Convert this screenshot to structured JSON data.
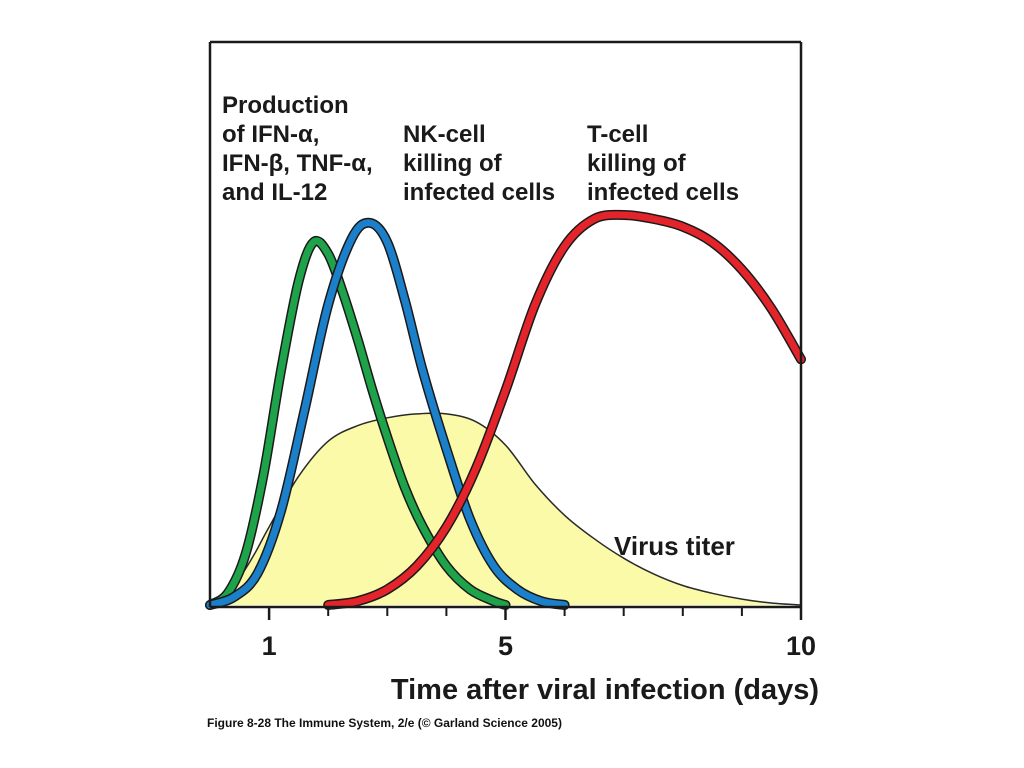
{
  "caption": "Figure 8-28  The Immune System, 2/e (© Garland Science 2005)",
  "chart_data": {
    "type": "line",
    "title": "",
    "xlabel": "Time after viral infection (days)",
    "ylabel": "",
    "xlim": [
      0,
      10
    ],
    "ylim": [
      0,
      1
    ],
    "xticks_labeled": [
      {
        "value": 1,
        "label": "1"
      },
      {
        "value": 5,
        "label": "5"
      },
      {
        "value": 10,
        "label": "10"
      }
    ],
    "xticks_minor": [
      2,
      3,
      4,
      6,
      7,
      8,
      9
    ],
    "grid": false,
    "series": [
      {
        "name": "Virus titer",
        "kind": "area",
        "color": "#fbfaa8",
        "stroke": "#2a2a2a",
        "x": [
          0,
          0.25,
          0.5,
          0.75,
          1.0,
          1.5,
          2.0,
          2.5,
          3.0,
          3.5,
          4.0,
          4.5,
          5.0,
          5.5,
          6.0,
          6.5,
          7.0,
          7.5,
          8.0,
          8.5,
          9.0,
          9.5,
          10.0
        ],
        "y": [
          0.01,
          0.03,
          0.07,
          0.13,
          0.2,
          0.33,
          0.42,
          0.46,
          0.48,
          0.49,
          0.49,
          0.47,
          0.41,
          0.31,
          0.23,
          0.17,
          0.12,
          0.08,
          0.05,
          0.03,
          0.015,
          0.005,
          0.0
        ]
      },
      {
        "name": "Production of IFN-α, IFN-β, TNF-α, and IL-12",
        "kind": "line",
        "color": "#1fa34a",
        "x": [
          0,
          0.3,
          0.6,
          0.9,
          1.2,
          1.5,
          1.75,
          2.0,
          2.25,
          2.5,
          2.75,
          3.0,
          3.3,
          3.6,
          4.0,
          4.4,
          4.8,
          5.0
        ],
        "y": [
          0.0,
          0.03,
          0.13,
          0.33,
          0.6,
          0.83,
          0.93,
          0.9,
          0.8,
          0.68,
          0.55,
          0.43,
          0.3,
          0.2,
          0.1,
          0.04,
          0.01,
          0.0
        ]
      },
      {
        "name": "NK-cell killing of infected cells",
        "kind": "line",
        "color": "#1b7fc9",
        "x": [
          0,
          0.4,
          0.8,
          1.2,
          1.6,
          2.0,
          2.4,
          2.7,
          3.0,
          3.3,
          3.6,
          4.0,
          4.4,
          4.8,
          5.2,
          5.6,
          6.0
        ],
        "y": [
          0.0,
          0.02,
          0.08,
          0.24,
          0.5,
          0.77,
          0.94,
          0.98,
          0.93,
          0.78,
          0.6,
          0.4,
          0.22,
          0.1,
          0.04,
          0.01,
          0.0
        ]
      },
      {
        "name": "T-cell killing of infected cells",
        "kind": "line",
        "color": "#e3242b",
        "x": [
          2.0,
          2.5,
          3.0,
          3.5,
          4.0,
          4.5,
          5.0,
          5.5,
          6.0,
          6.5,
          7.0,
          7.5,
          8.0,
          8.5,
          9.0,
          9.5,
          10.0
        ],
        "y": [
          0.0,
          0.01,
          0.04,
          0.1,
          0.2,
          0.35,
          0.55,
          0.77,
          0.92,
          0.99,
          1.0,
          0.99,
          0.97,
          0.93,
          0.86,
          0.76,
          0.63
        ]
      }
    ],
    "annotations": [
      {
        "id": "cytokine",
        "lines": [
          "Production",
          " of  IFN-α,",
          "IFN-β, TNF-α,",
          " and  IL-12"
        ]
      },
      {
        "id": "nk",
        "lines": [
          "NK-cell",
          "killing of",
          "infected cells"
        ]
      },
      {
        "id": "tcell",
        "lines": [
          "T-cell",
          "killing of",
          "infected cells"
        ]
      },
      {
        "id": "virus",
        "lines": [
          "Virus titer"
        ]
      }
    ]
  }
}
